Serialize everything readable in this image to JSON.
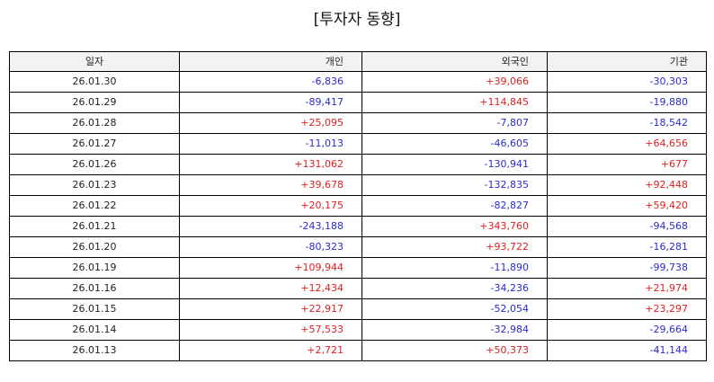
{
  "title": "[투자자 동향]",
  "colors": {
    "positive": "#e02020",
    "negative": "#2a2ad0",
    "header_bg": "#f2f2f2"
  },
  "table": {
    "headers": [
      "일자",
      "개인",
      "외국인",
      "기관"
    ],
    "rows": [
      [
        "26.01.30",
        "-6,836",
        "+39,066",
        "-30,303"
      ],
      [
        "26.01.29",
        "-89,417",
        "+114,845",
        "-19,880"
      ],
      [
        "26.01.28",
        "+25,095",
        "-7,807",
        "-18,542"
      ],
      [
        "26.01.27",
        "-11,013",
        "-46,605",
        "+64,656"
      ],
      [
        "26.01.26",
        "+131,062",
        "-130,941",
        "+677"
      ],
      [
        "26.01.23",
        "+39,678",
        "-132,835",
        "+92,448"
      ],
      [
        "26.01.22",
        "+20,175",
        "-82,827",
        "+59,420"
      ],
      [
        "26.01.21",
        "-243,188",
        "+343,760",
        "-94,568"
      ],
      [
        "26.01.20",
        "-80,323",
        "+93,722",
        "-16,281"
      ],
      [
        "26.01.19",
        "+109,944",
        "-11,890",
        "-99,738"
      ],
      [
        "26.01.16",
        "+12,434",
        "-34,236",
        "+21,974"
      ],
      [
        "26.01.15",
        "+22,917",
        "-52,054",
        "+23,297"
      ],
      [
        "26.01.14",
        "+57,533",
        "-32,984",
        "-29,664"
      ],
      [
        "26.01.13",
        "+2,721",
        "+50,373",
        "-41,144"
      ]
    ]
  }
}
